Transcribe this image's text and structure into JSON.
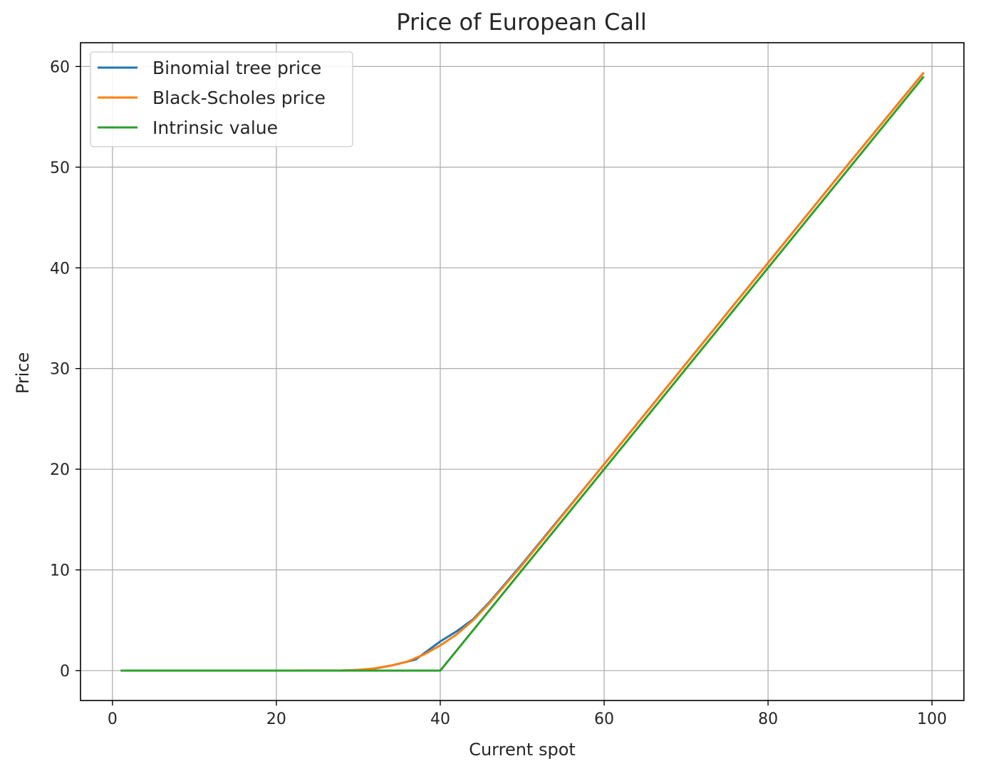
{
  "chart_data": {
    "type": "line",
    "title": "Price of European Call",
    "xlabel": "Current spot",
    "ylabel": "Price",
    "xlim": [
      -3.9,
      103.9
    ],
    "ylim": [
      -2.97,
      62.36
    ],
    "xticks": [
      0,
      20,
      40,
      60,
      80,
      100
    ],
    "yticks": [
      0,
      10,
      20,
      30,
      40,
      50,
      60
    ],
    "grid": true,
    "legend_position": "top-left",
    "series": [
      {
        "name": "Binomial tree price",
        "color": "#1f77b4",
        "x": [
          1,
          10,
          20,
          28,
          30,
          32,
          34,
          36,
          37,
          40,
          42,
          44,
          46,
          50,
          60,
          70,
          80,
          90,
          99
        ],
        "y": [
          0,
          0,
          0,
          0,
          0.05,
          0.2,
          0.5,
          0.9,
          1.1,
          2.9,
          3.9,
          5.1,
          6.8,
          10.6,
          20.5,
          30.5,
          40.5,
          50.5,
          59.4
        ]
      },
      {
        "name": "Black-Scholes price",
        "color": "#ff7f0e",
        "x": [
          1,
          10,
          20,
          28,
          30,
          32,
          34,
          36,
          38,
          40,
          42,
          44,
          46,
          50,
          60,
          70,
          80,
          90,
          99
        ],
        "y": [
          0,
          0,
          0,
          0.02,
          0.07,
          0.22,
          0.5,
          0.9,
          1.6,
          2.5,
          3.6,
          5.0,
          6.7,
          10.5,
          20.5,
          30.5,
          40.5,
          50.5,
          59.4
        ]
      },
      {
        "name": "Intrinsic value",
        "color": "#2ca02c",
        "x": [
          1,
          40,
          99
        ],
        "y": [
          0,
          0,
          59
        ]
      }
    ]
  }
}
